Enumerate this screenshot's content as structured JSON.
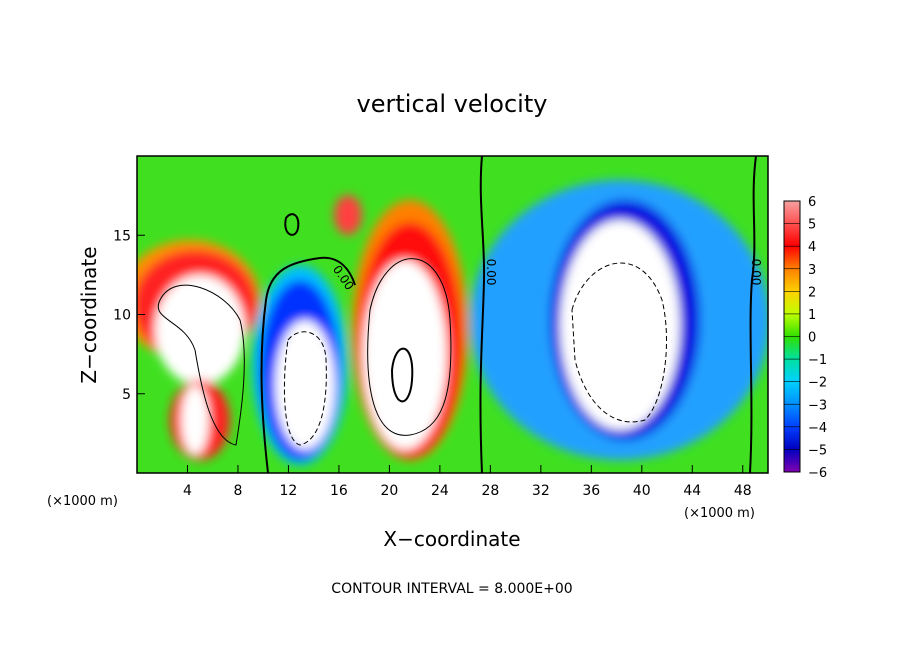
{
  "chart_data": {
    "type": "heatmap",
    "title": "vertical velocity",
    "xlabel": "X−coordinate",
    "ylabel": "Z−coordinate",
    "x_unit_label": "(×1000 m)",
    "x_unit_label_right": "(×1000 m)",
    "xlim": [
      0,
      50
    ],
    "ylim": [
      0,
      20
    ],
    "x_ticks": [
      4,
      8,
      12,
      16,
      20,
      24,
      28,
      32,
      36,
      40,
      44,
      48
    ],
    "y_ticks": [
      5,
      10,
      15
    ],
    "colorbar": {
      "min": -6,
      "max": 6,
      "ticks": [
        "6",
        "5",
        "4",
        "3",
        "2",
        "1",
        "0",
        "−1",
        "−2",
        "−3",
        "−4",
        "−5",
        "−6"
      ]
    },
    "contour_label": "0.00",
    "footer": "CONTOUR INTERVAL = 8.000E+00",
    "features": [
      {
        "x": 1.5,
        "z": 10.5,
        "w": 8
      },
      {
        "x": 6.5,
        "z": 6.5,
        "w": 8
      },
      {
        "x": 4.5,
        "z": 2.0,
        "w": 7
      },
      {
        "x": 13.5,
        "z": 6.5,
        "w": -8
      },
      {
        "x": 21.0,
        "z": 8.0,
        "w": 9
      },
      {
        "x": 38.0,
        "z": 8.5,
        "w": -9
      },
      {
        "x": 5.5,
        "z": 12.0,
        "w": 5
      },
      {
        "x": 17.0,
        "z": 16.0,
        "w": 4
      }
    ]
  }
}
